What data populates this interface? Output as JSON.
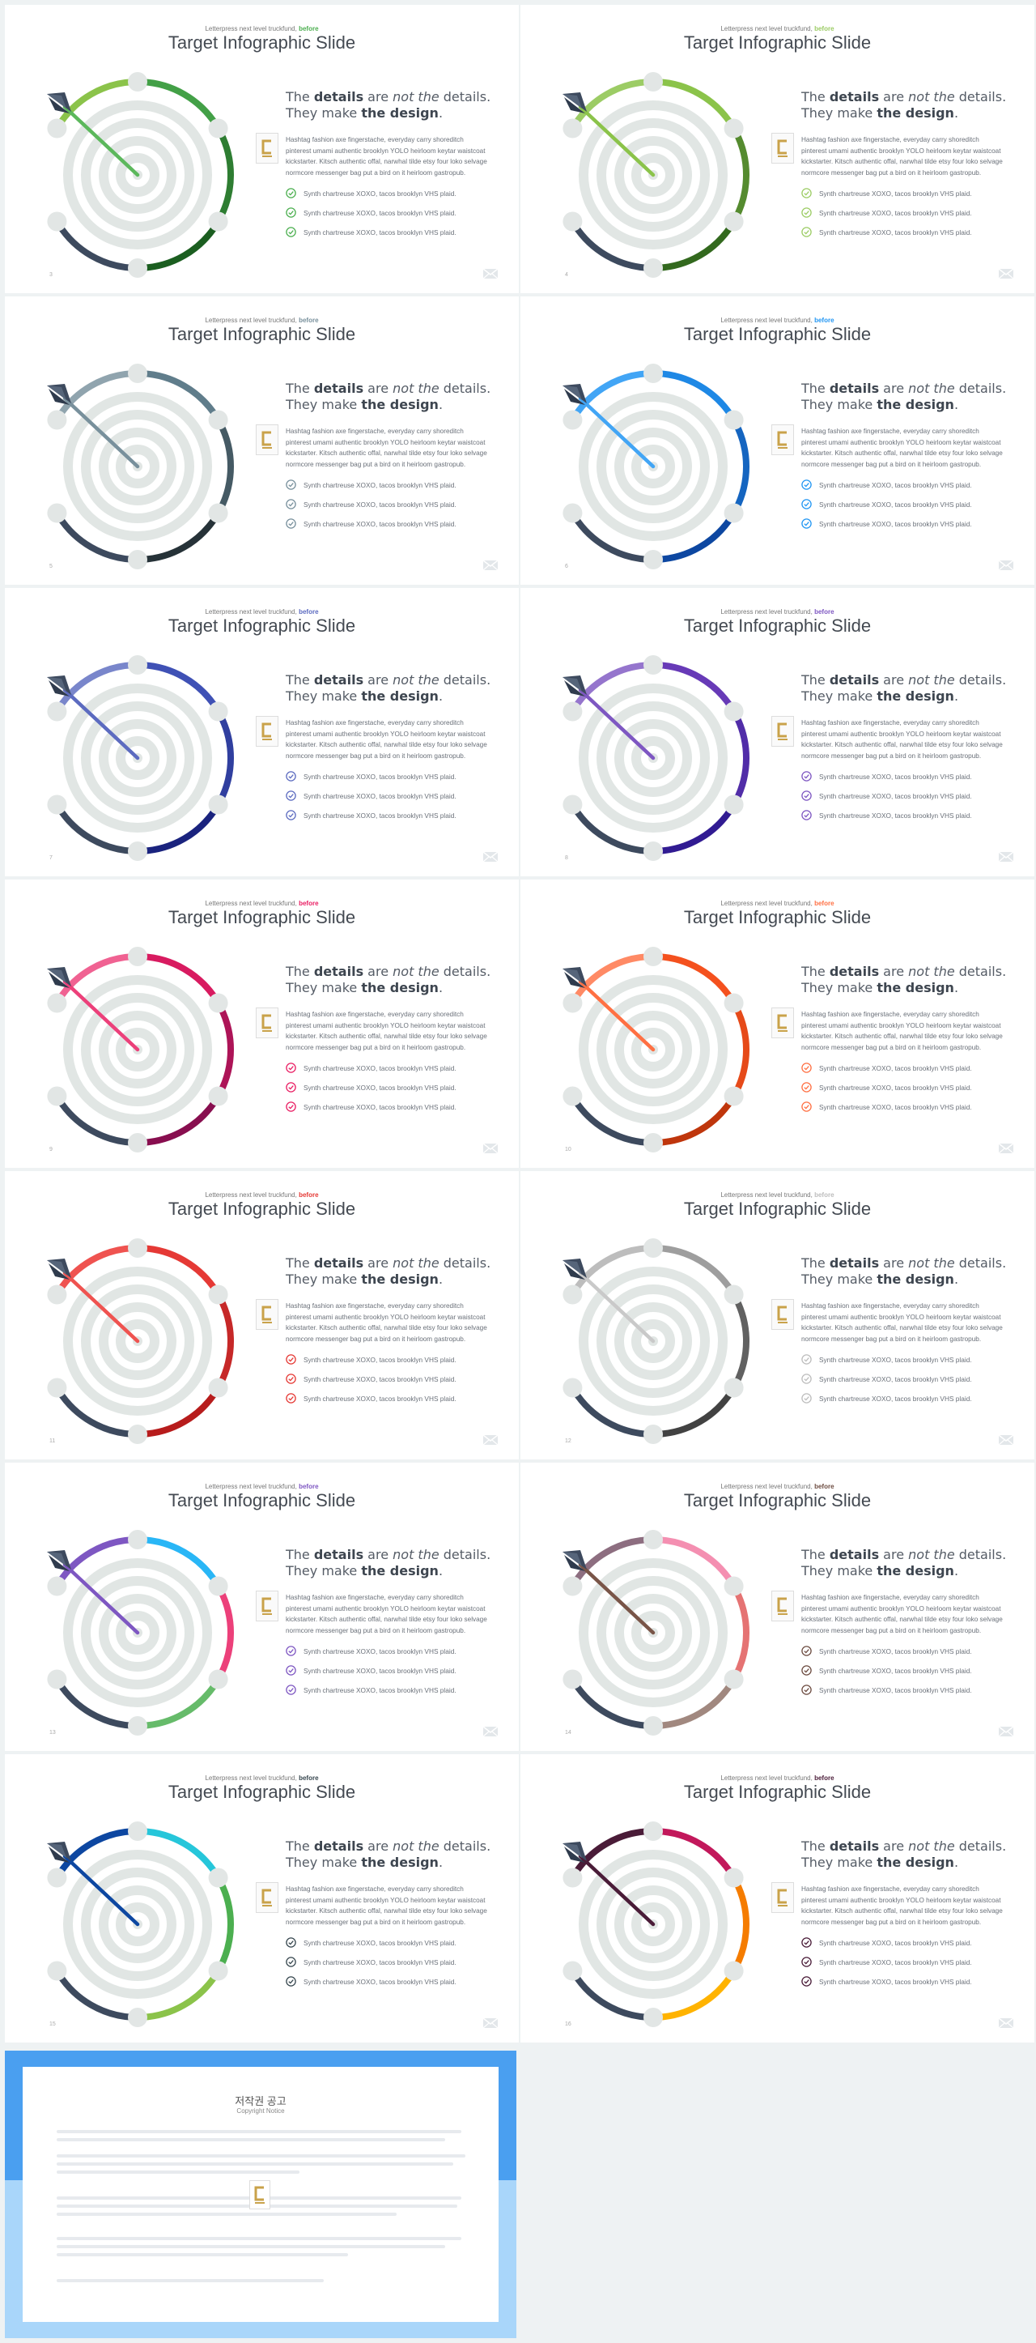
{
  "slide": {
    "pretitle": "Letterpress next level truckfund,",
    "pretitle_accent": "before",
    "title": "Target Infographic Slide",
    "heading": {
      "t1": "The ",
      "b1": "details",
      "t2": " are ",
      "i1": "not the",
      "t3": " details.",
      "t4": "They make ",
      "b2": "the design",
      "t5": "."
    },
    "body": "Hashtag fashion axe fingerstache, everyday carry shoreditch pinterest umami authentic brooklyn YOLO heirloom keytar waistcoat kickstarter. Kitsch authentic offal, narwhal tilde etsy four loko selvage normcore messenger bag put a bird on it heirloom gastropub.",
    "checks": [
      "Synth chartreuse XOXO, tacos brooklyn VHS plaid.",
      "Synth chartreuse XOXO, tacos brooklyn VHS plaid.",
      "Synth chartreuse XOXO, tacos brooklyn VHS plaid."
    ]
  },
  "slides": [
    {
      "page": "3",
      "colors": [
        "#8bc34a",
        "#43a047",
        "#2e7d32",
        "#1b5e20"
      ],
      "check": "#4caf50",
      "arrow": "#5cb85c"
    },
    {
      "page": "4",
      "colors": [
        "#9ccc65",
        "#8bc34a",
        "#558b2f",
        "#33691e"
      ],
      "check": "#9ccc65",
      "arrow": "#8bc34a"
    },
    {
      "page": "5",
      "colors": [
        "#90a4ae",
        "#607d8b",
        "#455a64",
        "#263238"
      ],
      "check": "#78909c",
      "arrow": "#78909c"
    },
    {
      "page": "6",
      "colors": [
        "#42a5f5",
        "#1e88e5",
        "#1565c0",
        "#0d47a1"
      ],
      "check": "#2196f3",
      "arrow": "#42a5f5"
    },
    {
      "page": "7",
      "colors": [
        "#7986cb",
        "#3f51b5",
        "#303f9f",
        "#1a237e"
      ],
      "check": "#5c6bc0",
      "arrow": "#5c6bc0"
    },
    {
      "page": "8",
      "colors": [
        "#9575cd",
        "#673ab7",
        "#512da8",
        "#311b92"
      ],
      "check": "#7e57c2",
      "arrow": "#7e57c2"
    },
    {
      "page": "9",
      "colors": [
        "#f06292",
        "#d81b60",
        "#ad1457",
        "#880e4f"
      ],
      "check": "#e91e63",
      "arrow": "#ec407a"
    },
    {
      "page": "10",
      "colors": [
        "#ff8a65",
        "#f4511e",
        "#e64a19",
        "#bf360c"
      ],
      "check": "#ff7043",
      "arrow": "#ff7043"
    },
    {
      "page": "11",
      "colors": [
        "#ef5350",
        "#e53935",
        "#c62828",
        "#b71c1c"
      ],
      "check": "#e53935",
      "arrow": "#ef5350"
    },
    {
      "page": "12",
      "colors": [
        "#bdbdbd",
        "#9e9e9e",
        "#616161",
        "#424242"
      ],
      "check": "#bdbdbd",
      "arrow": "#c9c9c9"
    },
    {
      "page": "13",
      "colors": [
        "#7e57c2",
        "#29b6f6",
        "#ec407a",
        "#66bb6a"
      ],
      "check": "#7e57c2",
      "arrow": "#7e57c2"
    },
    {
      "page": "14",
      "colors": [
        "#8d6e80",
        "#f48fb1",
        "#e57373",
        "#a1887f"
      ],
      "check": "#6d4c41",
      "arrow": "#795548"
    },
    {
      "page": "15",
      "colors": [
        "#0d47a1",
        "#26c6da",
        "#4caf50",
        "#8bc34a"
      ],
      "check": "#37474f",
      "arrow": "#0d47a1"
    },
    {
      "page": "16",
      "colors": [
        "#4a1c38",
        "#c2185b",
        "#f57c00",
        "#ffb300"
      ],
      "check": "#4a1c38",
      "arrow": "#4a1c38"
    }
  ],
  "notice": {
    "title": "저작권 공고",
    "subtitle": "Copyright Notice"
  }
}
